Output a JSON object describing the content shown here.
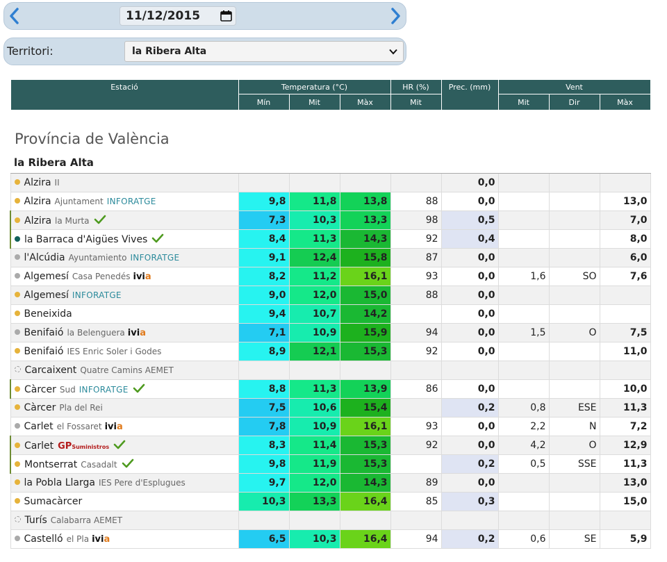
{
  "date": {
    "value": "11/12/2015"
  },
  "territory": {
    "label": "Territori:",
    "selected": "la Ribera Alta"
  },
  "table": {
    "headers": {
      "station": "Estació",
      "temperature": "Temperatura (°C)",
      "hr": "HR (%)",
      "prec": "Prec. (mm)",
      "wind": "Vent",
      "temp_min": "Mín",
      "temp_mit": "Mit",
      "temp_max": "Màx",
      "hr_mit": "Mit",
      "wind_mit": "Mit",
      "wind_dir": "Dir",
      "wind_max": "Màx"
    },
    "province": "Província de València",
    "region": "la Ribera Alta",
    "rows": [
      {
        "name": "Alzira",
        "sub": "II",
        "brand": "",
        "dot": "#e6b33b",
        "check": false,
        "hl": false,
        "min": "",
        "mit": "",
        "max": "",
        "hr": "",
        "prec": "0,0",
        "wmit": "",
        "wdir": "",
        "wmax": "",
        "c_min": "",
        "c_mit": "",
        "c_max": "",
        "c_prec": ""
      },
      {
        "name": "Alzira",
        "sub": "Ajuntament",
        "brand": "INFORATGE",
        "dot": "#e6b33b",
        "check": false,
        "hl": false,
        "min": "9,8",
        "mit": "11,8",
        "max": "13,8",
        "hr": "88",
        "prec": "0,0",
        "wmit": "",
        "wdir": "",
        "wmax": "13,0",
        "c_min": "#27f3f0",
        "c_mit": "#15e889",
        "c_max": "#13d258",
        "c_prec": ""
      },
      {
        "name": "Alzira",
        "sub": "la Murta",
        "brand": "",
        "dot": "#e6b33b",
        "check": true,
        "hl": true,
        "min": "7,3",
        "mit": "10,3",
        "max": "13,3",
        "hr": "98",
        "prec": "0,5",
        "wmit": "",
        "wdir": "",
        "wmax": "7,0",
        "c_min": "#24ccf2",
        "c_mit": "#17ecae",
        "c_max": "#13d258",
        "c_prec": "#dfe4f3"
      },
      {
        "name": "la Barraca d'Aigües Vives",
        "sub": "",
        "brand": "",
        "dot": "#11605a",
        "check": true,
        "hl": true,
        "min": "8,4",
        "mit": "11,3",
        "max": "14,3",
        "hr": "92",
        "prec": "0,4",
        "wmit": "",
        "wdir": "",
        "wmax": "8,0",
        "c_min": "#27f3f0",
        "c_mit": "#15e889",
        "c_max": "#1ab833",
        "c_prec": "#dfe4f3"
      },
      {
        "name": "l'Alcúdia",
        "sub": "Ayuntamiento",
        "brand": "INFORATGE",
        "dot": "#aaaaaa",
        "check": false,
        "hl": false,
        "min": "9,1",
        "mit": "12,4",
        "max": "15,8",
        "hr": "87",
        "prec": "0,0",
        "wmit": "",
        "wdir": "",
        "wmax": "6,0",
        "c_min": "#27f3f0",
        "c_mit": "#15cc52",
        "c_max": "#1db11e",
        "c_prec": ""
      },
      {
        "name": "Algemesí",
        "sub": "Casa Penedés",
        "brand": "ivia",
        "dot": "#aaaaaa",
        "check": false,
        "hl": false,
        "min": "8,2",
        "mit": "11,2",
        "max": "16,1",
        "hr": "93",
        "prec": "0,0",
        "wmit": "1,6",
        "wdir": "SO",
        "wmax": "7,6",
        "c_min": "#27f3f0",
        "c_mit": "#15e889",
        "c_max": "#6ad31a",
        "c_prec": ""
      },
      {
        "name": "Algemesí",
        "sub": "",
        "brand": "INFORATGE",
        "dot": "#e6b33b",
        "check": false,
        "hl": false,
        "min": "9,0",
        "mit": "12,0",
        "max": "15,0",
        "hr": "88",
        "prec": "0,0",
        "wmit": "",
        "wdir": "",
        "wmax": "",
        "c_min": "#27f3f0",
        "c_mit": "#15e889",
        "c_max": "#1ab833",
        "c_prec": ""
      },
      {
        "name": "Beneixida",
        "sub": "",
        "brand": "",
        "dot": "#e6b33b",
        "check": false,
        "hl": false,
        "min": "9,4",
        "mit": "10,7",
        "max": "14,2",
        "hr": "",
        "prec": "0,0",
        "wmit": "",
        "wdir": "",
        "wmax": "",
        "c_min": "#27f3f0",
        "c_mit": "#17ecae",
        "c_max": "#1ab833",
        "c_prec": ""
      },
      {
        "name": "Benifaió",
        "sub": "la Belenguera",
        "brand": "ivia",
        "dot": "#aaaaaa",
        "check": false,
        "hl": false,
        "min": "7,1",
        "mit": "10,9",
        "max": "15,9",
        "hr": "94",
        "prec": "0,0",
        "wmit": "1,5",
        "wdir": "O",
        "wmax": "7,5",
        "c_min": "#24ccf2",
        "c_mit": "#17ecae",
        "c_max": "#1db11e",
        "c_prec": ""
      },
      {
        "name": "Benifaió",
        "sub": "IES Enric Soler i Godes",
        "brand": "",
        "dot": "#e6b33b",
        "check": false,
        "hl": false,
        "min": "8,9",
        "mit": "12,1",
        "max": "15,3",
        "hr": "92",
        "prec": "0,0",
        "wmit": "",
        "wdir": "",
        "wmax": "11,0",
        "c_min": "#27f3f0",
        "c_mit": "#15cc52",
        "c_max": "#1ab833",
        "c_prec": ""
      },
      {
        "name": "Carcaixent",
        "sub": "Quatre Camins AEMET",
        "brand": "",
        "dot": "empty",
        "check": false,
        "hl": false,
        "min": "",
        "mit": "",
        "max": "",
        "hr": "",
        "prec": "",
        "wmit": "",
        "wdir": "",
        "wmax": "",
        "c_min": "",
        "c_mit": "",
        "c_max": "",
        "c_prec": ""
      },
      {
        "name": "Càrcer",
        "sub": "Sud",
        "brand": "INFORATGE",
        "dot": "#e6b33b",
        "check": true,
        "hl": true,
        "min": "8,8",
        "mit": "11,3",
        "max": "13,9",
        "hr": "86",
        "prec": "0,0",
        "wmit": "",
        "wdir": "",
        "wmax": "10,0",
        "c_min": "#27f3f0",
        "c_mit": "#15e889",
        "c_max": "#13d258",
        "c_prec": ""
      },
      {
        "name": "Càrcer",
        "sub": "Pla del Rei",
        "brand": "",
        "dot": "#e6b33b",
        "check": false,
        "hl": false,
        "min": "7,5",
        "mit": "10,6",
        "max": "15,4",
        "hr": "",
        "prec": "0,2",
        "wmit": "0,8",
        "wdir": "ESE",
        "wmax": "11,3",
        "c_min": "#24ccf2",
        "c_mit": "#17ecae",
        "c_max": "#1db11e",
        "c_prec": "#dfe4f3"
      },
      {
        "name": "Carlet",
        "sub": "el Fossaret",
        "brand": "ivia",
        "dot": "#aaaaaa",
        "check": false,
        "hl": false,
        "min": "7,8",
        "mit": "10,9",
        "max": "16,1",
        "hr": "93",
        "prec": "0,0",
        "wmit": "2,2",
        "wdir": "N",
        "wmax": "7,2",
        "c_min": "#24ccf2",
        "c_mit": "#17ecae",
        "c_max": "#6ad31a",
        "c_prec": ""
      },
      {
        "name": "Carlet",
        "sub": "",
        "brand": "GP",
        "dot": "#e6b33b",
        "check": true,
        "hl": true,
        "min": "8,3",
        "mit": "11,4",
        "max": "15,3",
        "hr": "92",
        "prec": "0,0",
        "wmit": "4,2",
        "wdir": "O",
        "wmax": "12,9",
        "c_min": "#27f3f0",
        "c_mit": "#15e889",
        "c_max": "#1ab833",
        "c_prec": ""
      },
      {
        "name": "Montserrat",
        "sub": "Casadalt",
        "brand": "",
        "dot": "#e6b33b",
        "check": true,
        "hl": true,
        "min": "9,8",
        "mit": "11,9",
        "max": "15,3",
        "hr": "",
        "prec": "0,2",
        "wmit": "0,5",
        "wdir": "SSE",
        "wmax": "11,3",
        "c_min": "#27f3f0",
        "c_mit": "#15e889",
        "c_max": "#1ab833",
        "c_prec": "#dfe4f3"
      },
      {
        "name": "la Pobla Llarga",
        "sub": "IES Pere d'Esplugues",
        "brand": "",
        "dot": "#e6b33b",
        "check": false,
        "hl": false,
        "min": "9,7",
        "mit": "12,0",
        "max": "14,3",
        "hr": "89",
        "prec": "0,0",
        "wmit": "",
        "wdir": "",
        "wmax": "13,0",
        "c_min": "#27f3f0",
        "c_mit": "#15e889",
        "c_max": "#1ab833",
        "c_prec": ""
      },
      {
        "name": "Sumacàrcer",
        "sub": "",
        "brand": "",
        "dot": "#e6b33b",
        "check": false,
        "hl": false,
        "min": "10,3",
        "mit": "13,3",
        "max": "16,4",
        "hr": "85",
        "prec": "0,3",
        "wmit": "",
        "wdir": "",
        "wmax": "15,0",
        "c_min": "#17ecae",
        "c_mit": "#13d258",
        "c_max": "#6ad31a",
        "c_prec": "#dfe4f3"
      },
      {
        "name": "Turís",
        "sub": "Calabarra AEMET",
        "brand": "",
        "dot": "empty",
        "check": false,
        "hl": false,
        "min": "",
        "mit": "",
        "max": "",
        "hr": "",
        "prec": "",
        "wmit": "",
        "wdir": "",
        "wmax": "",
        "c_min": "",
        "c_mit": "",
        "c_max": "",
        "c_prec": ""
      },
      {
        "name": "Castelló",
        "sub": "el Pla",
        "brand": "ivia",
        "dot": "#aaaaaa",
        "check": false,
        "hl": false,
        "min": "6,5",
        "mit": "10,3",
        "max": "16,4",
        "hr": "94",
        "prec": "0,2",
        "wmit": "0,6",
        "wdir": "SE",
        "wmax": "5,9",
        "c_min": "#24ccf2",
        "c_mit": "#17ecae",
        "c_max": "#6ad31a",
        "c_prec": "#dfe4f3"
      }
    ]
  },
  "icons": {
    "prev": "chevron-left-icon",
    "next": "chevron-right-icon",
    "calendar": "calendar-icon",
    "dropdown": "chevron-down-icon",
    "check": "check-icon"
  },
  "colors": {
    "header": "#2e5d5d",
    "check": "#4e9a1f",
    "nav_arrow": "#2f7fd1"
  }
}
